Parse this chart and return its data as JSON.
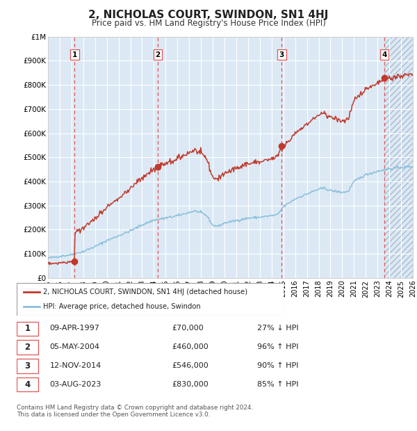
{
  "title": "2, NICHOLAS COURT, SWINDON, SN1 4HJ",
  "subtitle": "Price paid vs. HM Land Registry's House Price Index (HPI)",
  "footnote": "Contains HM Land Registry data © Crown copyright and database right 2024.\nThis data is licensed under the Open Government Licence v3.0.",
  "legend_line1": "2, NICHOLAS COURT, SWINDON, SN1 4HJ (detached house)",
  "legend_line2": "HPI: Average price, detached house, Swindon",
  "sales": [
    {
      "num": 1,
      "date": "09-APR-1997",
      "year": 1997.27,
      "price": 70000,
      "pct": "27% ↓ HPI"
    },
    {
      "num": 2,
      "date": "05-MAY-2004",
      "year": 2004.34,
      "price": 460000,
      "pct": "96% ↑ HPI"
    },
    {
      "num": 3,
      "date": "12-NOV-2014",
      "year": 2014.86,
      "price": 546000,
      "pct": "90% ↑ HPI"
    },
    {
      "num": 4,
      "date": "03-AUG-2023",
      "year": 2023.58,
      "price": 830000,
      "pct": "85% ↑ HPI"
    }
  ],
  "hpi_color": "#8bbfdb",
  "price_color": "#c0392b",
  "sale_dot_color": "#c0392b",
  "bg_color": "#dce9f5",
  "grid_color": "#ffffff",
  "dashed_line_color": "#e05555",
  "ylim": [
    0,
    1000000
  ],
  "xlim": [
    1995,
    2026
  ],
  "yticks": [
    0,
    100000,
    200000,
    300000,
    400000,
    500000,
    600000,
    700000,
    800000,
    900000,
    1000000
  ],
  "ytick_labels": [
    "£0",
    "£100K",
    "£200K",
    "£300K",
    "£400K",
    "£500K",
    "£600K",
    "£700K",
    "£800K",
    "£900K",
    "£1M"
  ],
  "xticks": [
    1995,
    1996,
    1997,
    1998,
    1999,
    2000,
    2001,
    2002,
    2003,
    2004,
    2005,
    2006,
    2007,
    2008,
    2009,
    2010,
    2011,
    2012,
    2013,
    2014,
    2015,
    2016,
    2017,
    2018,
    2019,
    2020,
    2021,
    2022,
    2023,
    2024,
    2025,
    2026
  ]
}
